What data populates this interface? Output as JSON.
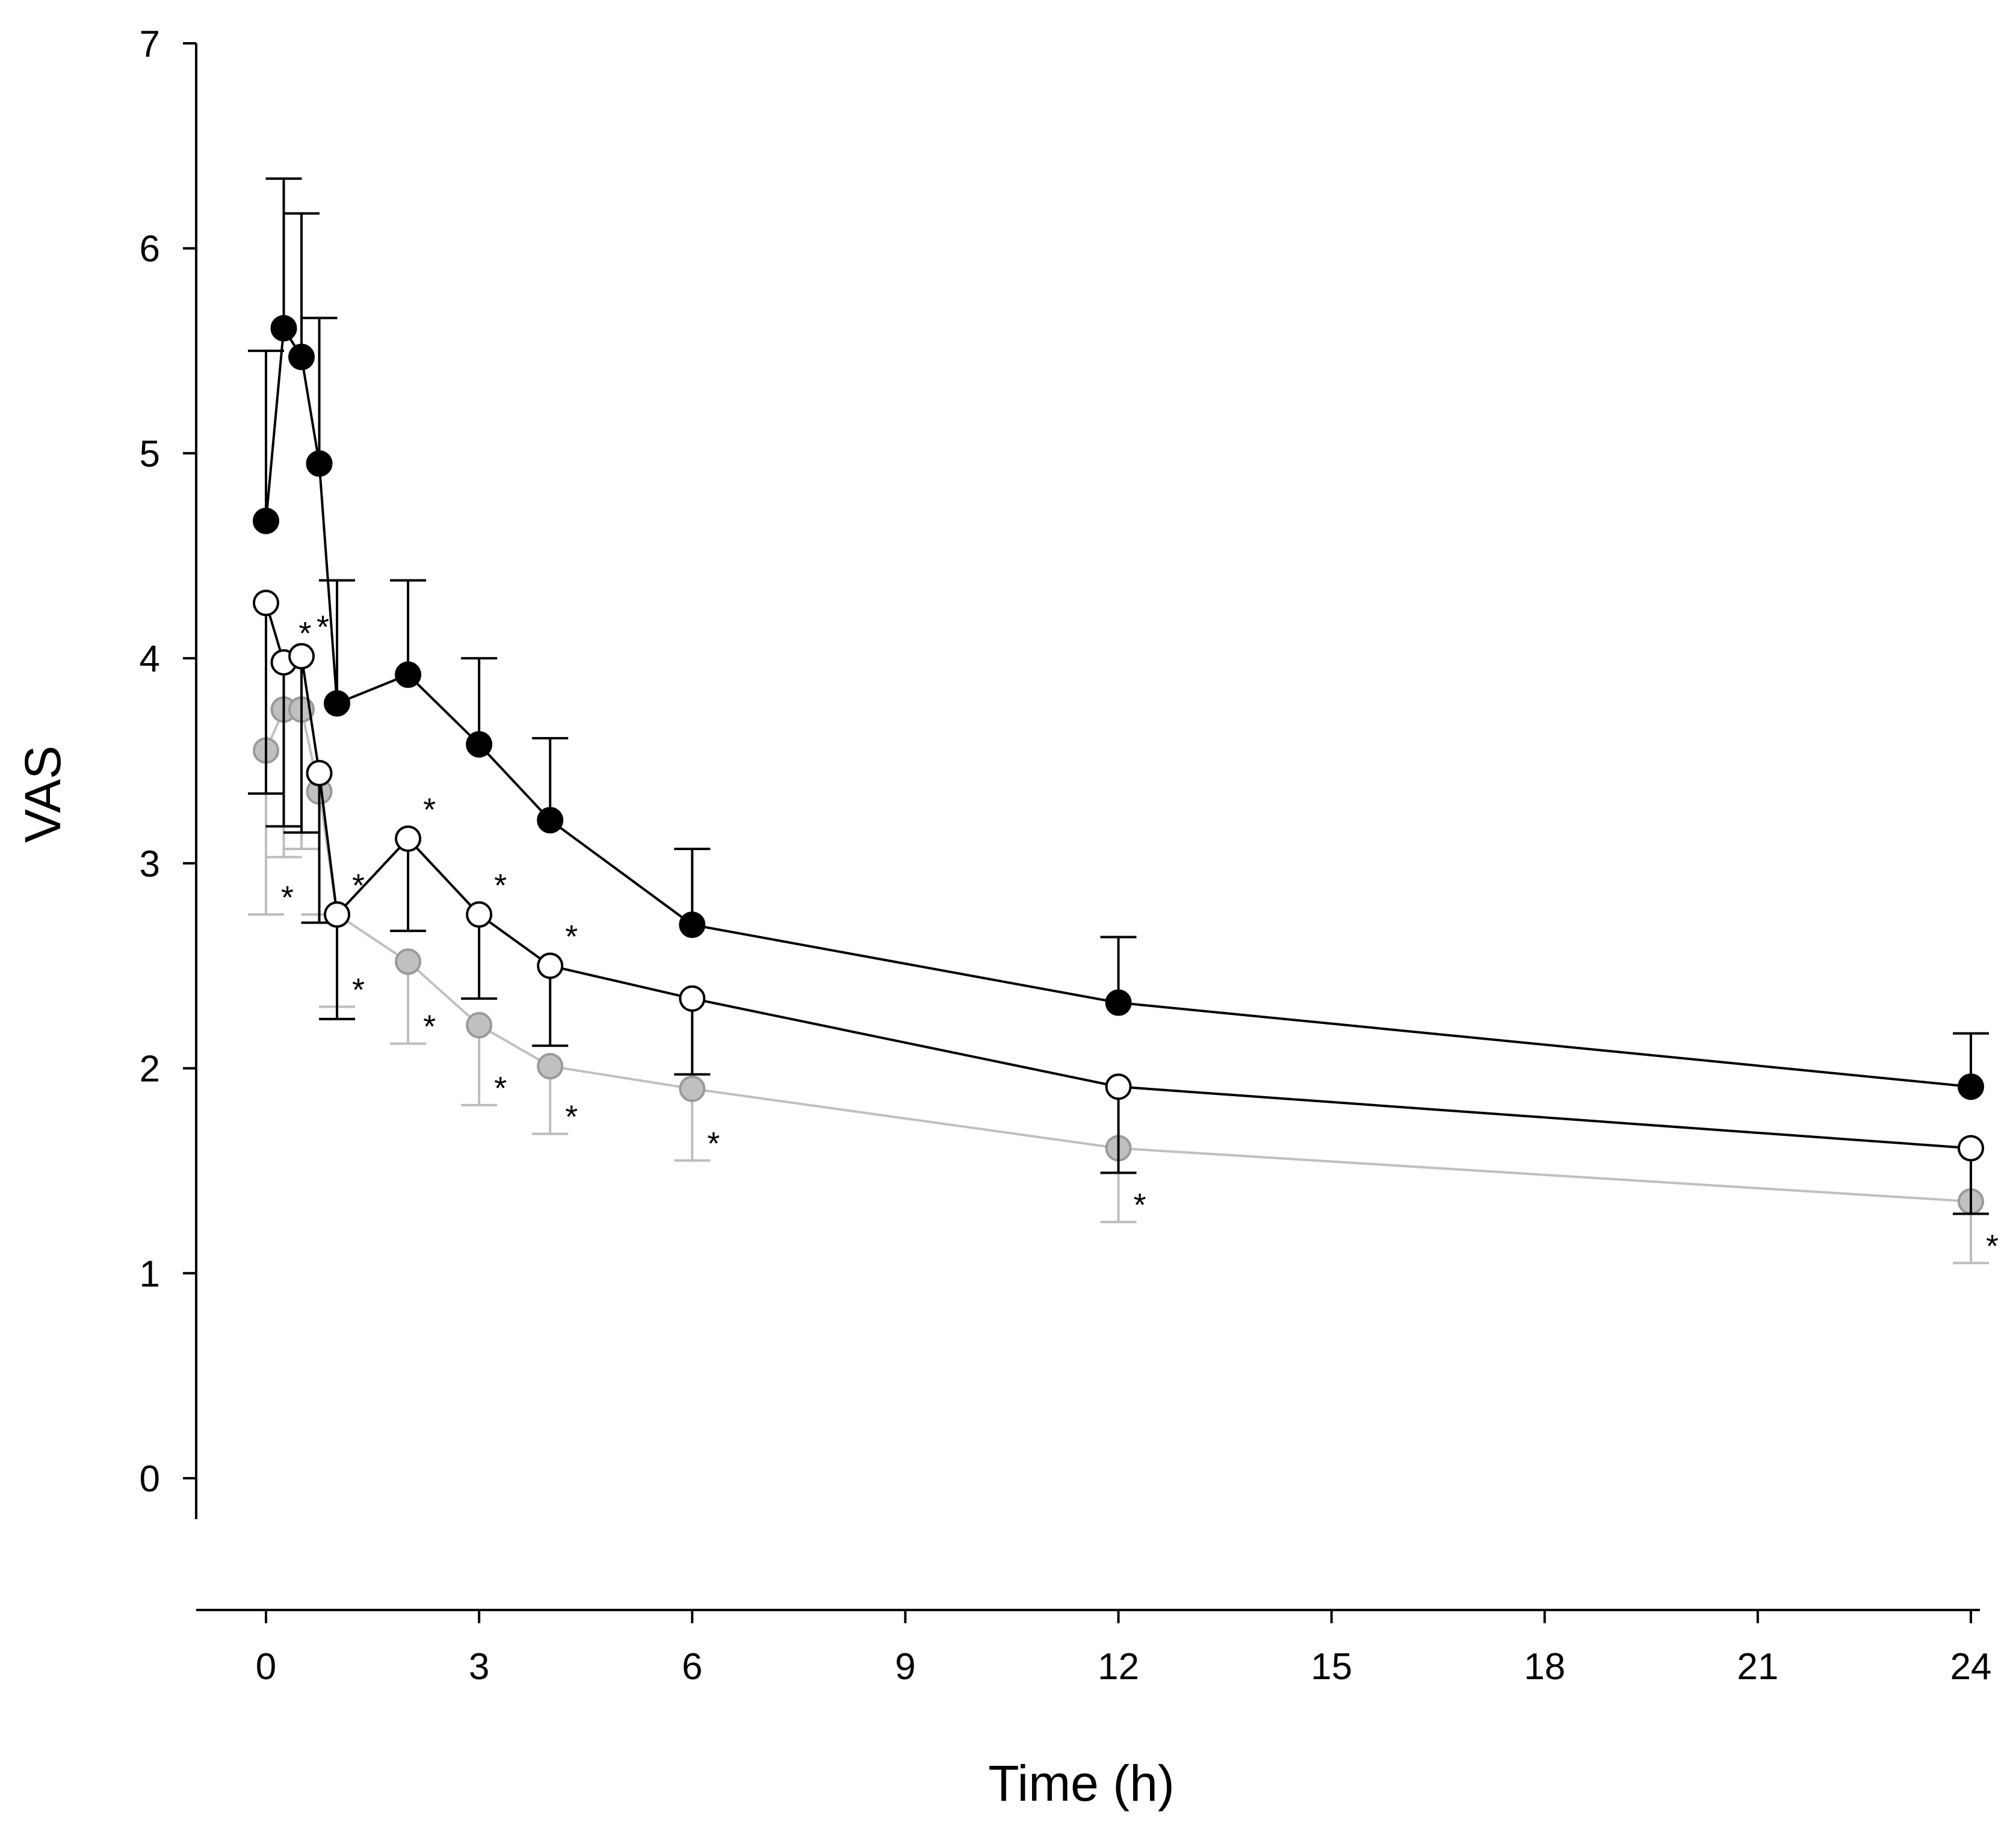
{
  "chart_data": {
    "type": "line",
    "title": "",
    "xlabel": "Time (h)",
    "ylabel": "VAS",
    "xlim": [
      -1.0,
      24.5
    ],
    "ylim": [
      0,
      7
    ],
    "xticks": [
      0,
      3,
      6,
      9,
      12,
      15,
      18,
      21,
      24
    ],
    "yticks": [
      0,
      1,
      2,
      3,
      4,
      5,
      6,
      7
    ],
    "grid": false,
    "legend": "none",
    "series": [
      {
        "name": "black filled",
        "color": "#000000",
        "fill": "#000000",
        "line": "#000000",
        "error_direction": "up",
        "x": [
          0,
          0.25,
          0.5,
          0.75,
          1,
          2,
          3,
          4,
          6,
          12,
          24
        ],
        "y": [
          4.67,
          5.61,
          5.47,
          4.95,
          3.78,
          3.92,
          3.58,
          3.21,
          2.7,
          2.32,
          1.91
        ],
        "err": [
          0.83,
          0.73,
          0.7,
          0.71,
          0.6,
          0.46,
          0.42,
          0.4,
          0.37,
          0.32,
          0.26
        ],
        "sig": []
      },
      {
        "name": "white open",
        "color": "#000000",
        "fill": "#ffffff",
        "line": "#000000",
        "error_direction": "down",
        "x": [
          0,
          0.25,
          0.5,
          0.75,
          1,
          2,
          3,
          4,
          6,
          12,
          24
        ],
        "y": [
          4.27,
          3.98,
          4.01,
          3.44,
          2.75,
          3.12,
          2.75,
          2.5,
          2.34,
          1.91,
          1.61
        ],
        "err": [
          0.93,
          0.8,
          0.86,
          0.73,
          0.51,
          0.45,
          0.41,
          0.39,
          0.37,
          0.42,
          0.32
        ],
        "sig": [
          "",
          "*",
          "*",
          "",
          "*",
          "*",
          "*",
          "*",
          "",
          "",
          ""
        ]
      },
      {
        "name": "gray filled",
        "color": "#999999",
        "fill": "#c0c0c0",
        "line": "#c0c0c0",
        "error_direction": "down",
        "x": [
          0,
          0.25,
          0.5,
          0.75,
          1,
          2,
          3,
          4,
          6,
          12,
          24
        ],
        "y": [
          3.55,
          3.75,
          3.75,
          3.35,
          2.75,
          2.52,
          2.21,
          2.01,
          1.9,
          1.61,
          1.35
        ],
        "err": [
          0.8,
          0.72,
          0.68,
          0.6,
          0.45,
          0.4,
          0.39,
          0.33,
          0.35,
          0.36,
          0.3
        ],
        "sig": [
          "*",
          "",
          "",
          "",
          "*",
          "*",
          "*",
          "*",
          "*",
          "*",
          "*"
        ]
      }
    ]
  }
}
